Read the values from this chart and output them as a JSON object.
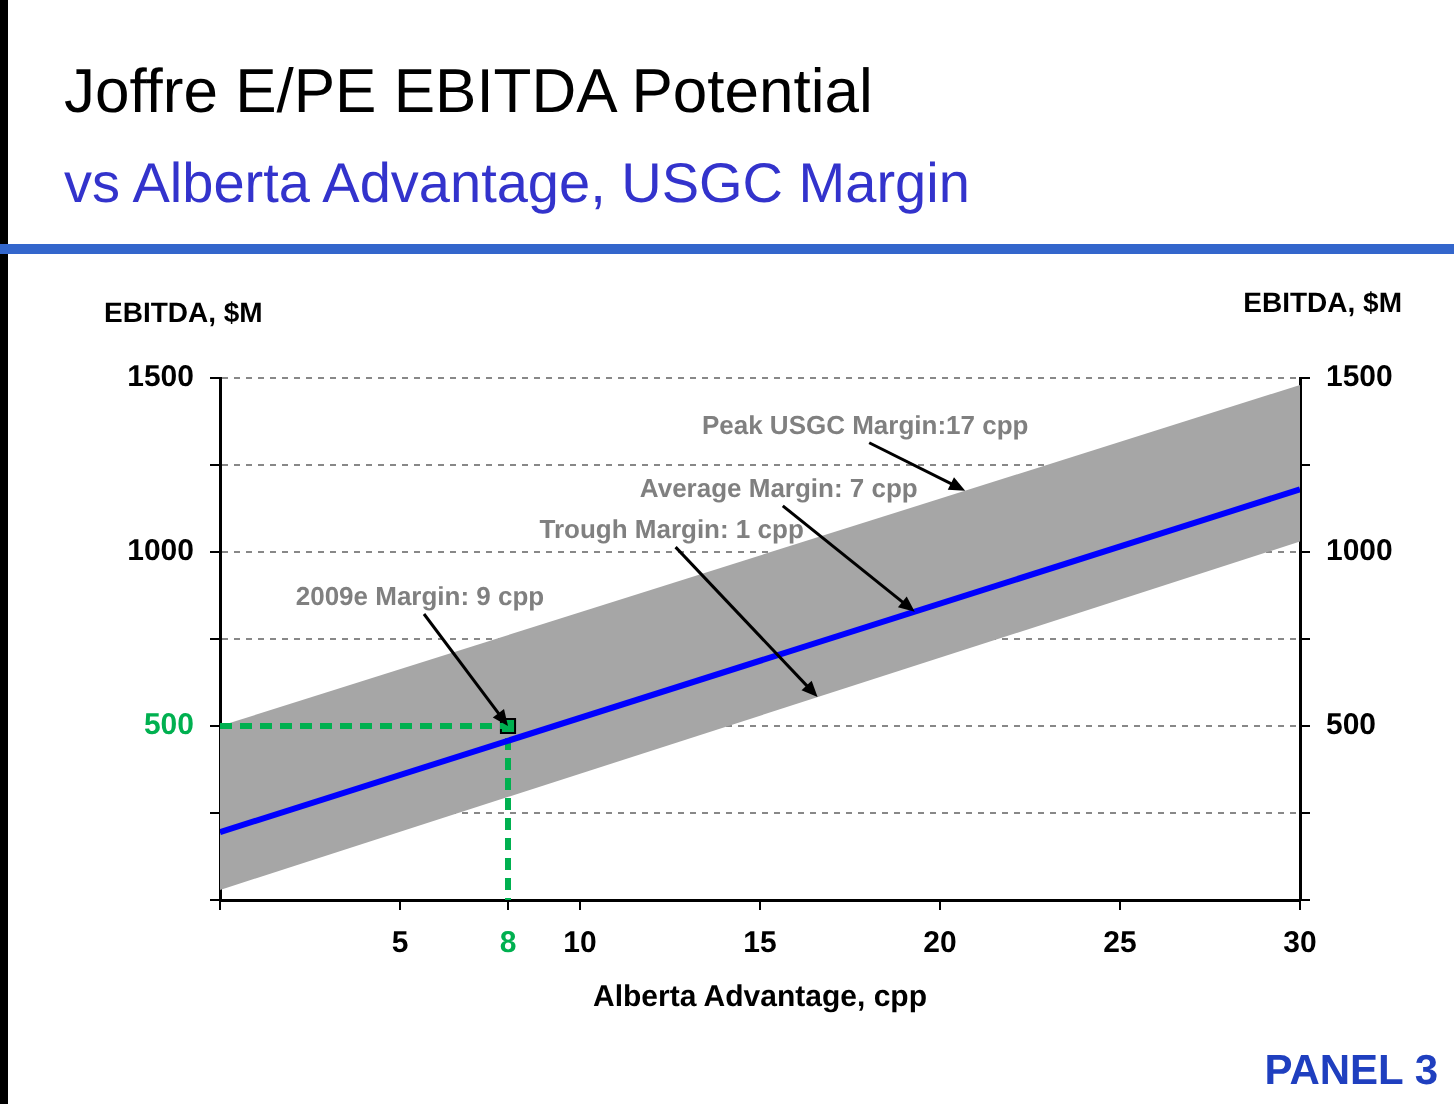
{
  "chart_data": {
    "type": "line",
    "title": "Joffre E/PE EBITDA Potential",
    "subtitle": "vs Alberta Advantage, USGC Margin",
    "xlabel": "Alberta Advantage, cpp",
    "ylabel": "EBITDA, $M",
    "y2label": "EBITDA, $M",
    "xlim": [
      0,
      30
    ],
    "xticks": [
      {
        "value": 0,
        "label": null
      },
      5,
      8,
      10,
      15,
      20,
      25,
      30
    ],
    "ylim": [
      0,
      1500
    ],
    "yticks": [
      {
        "value": 0,
        "label": null
      },
      {
        "value": 250,
        "label": null
      },
      500,
      {
        "value": 750,
        "label": null
      },
      1000,
      {
        "value": 1250,
        "label": null
      },
      1500
    ],
    "y2lim": [
      0,
      1500
    ],
    "y2ticks": [
      {
        "value": 0,
        "label": null
      },
      {
        "value": 250,
        "label": null
      },
      500,
      {
        "value": 750,
        "label": null
      },
      1000,
      {
        "value": 1250,
        "label": null
      },
      1500
    ],
    "grid": "y",
    "legend": false,
    "series": [
      {
        "color": "#0000ff",
        "x": [
          0,
          30
        ],
        "values": [
          195,
          1180
        ],
        "lower": [
          29,
          1030
        ],
        "upper": [
          500,
          1480
        ],
        "marker": "none"
      },
      {
        "color": "#00b050",
        "x": [
          0,
          8,
          8
        ],
        "values": [
          500,
          500,
          0
        ],
        "line_style": "dashed",
        "marker": "none"
      },
      {
        "type": "scatter",
        "color": "#00b050",
        "x": [
          8
        ],
        "values": [
          500
        ],
        "marker": "square"
      }
    ],
    "annotations": [
      {
        "text": "2009e Margin: 9 cpp",
        "x": 8,
        "y": 500
      },
      {
        "text": "Trough Margin: 1 cpp",
        "x": 16.6,
        "y": 583
      },
      {
        "text": "Average Margin: 7 cpp",
        "x": 19.3,
        "y": 828
      },
      {
        "text": "Peak USGC Margin:17 cpp",
        "x": 20.7,
        "y": 1176
      },
      "PANEL 3"
    ]
  }
}
